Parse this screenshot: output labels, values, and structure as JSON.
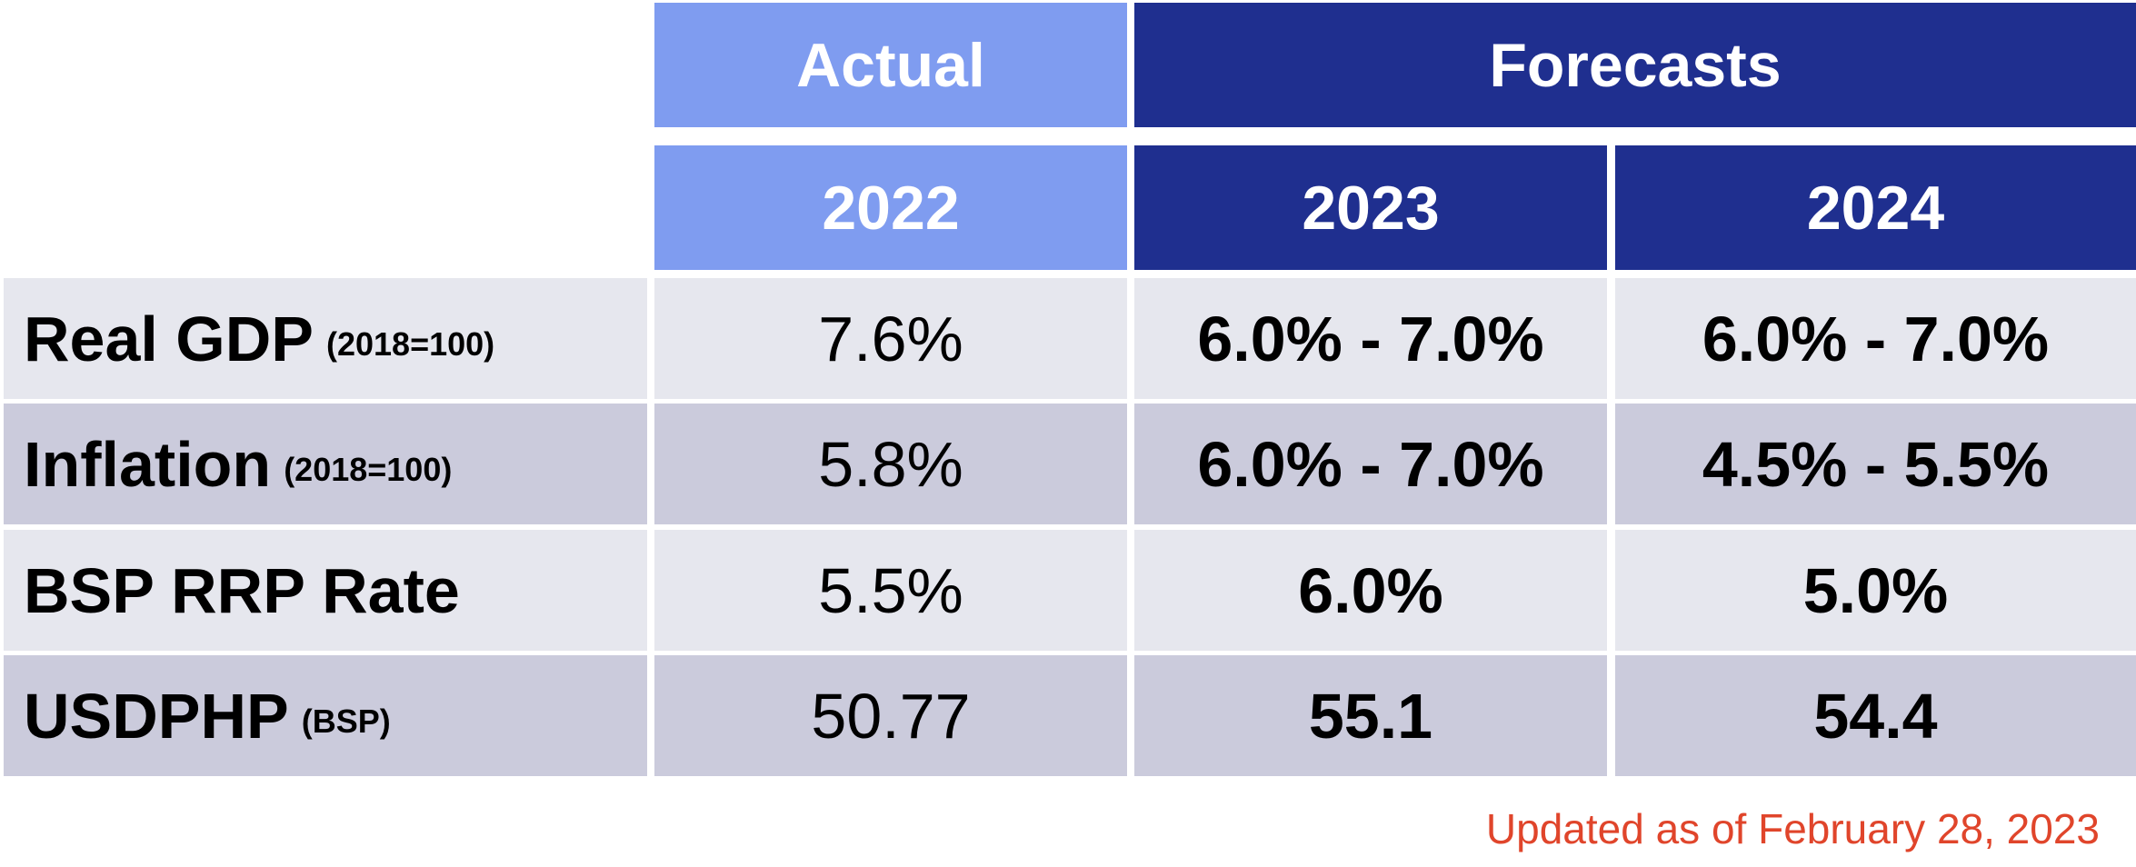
{
  "table": {
    "header": {
      "actual": "Actual",
      "forecasts": "Forecasts",
      "years": [
        "2022",
        "2023",
        "2024"
      ]
    },
    "rows": [
      {
        "label": "Real GDP",
        "note": "(2018=100)",
        "values": [
          "7.6%",
          "6.0% - 7.0%",
          "6.0% - 7.0%"
        ]
      },
      {
        "label": "Inflation",
        "note": "(2018=100)",
        "values": [
          "5.8%",
          "6.0% - 7.0%",
          "4.5% - 5.5%"
        ]
      },
      {
        "label": "BSP RRP Rate",
        "values": [
          "5.5%",
          "6.0%",
          "5.0%"
        ]
      },
      {
        "label": "USDPHP",
        "note": "(BSP)",
        "values": [
          "50.77",
          "55.1",
          "54.4"
        ]
      }
    ]
  },
  "footer": "Updated as of February 28, 2023"
}
